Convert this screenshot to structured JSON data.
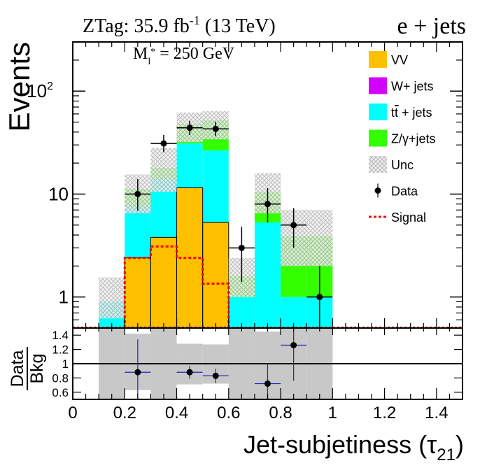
{
  "header": {
    "lumi_prefix": "ZTag: 35.9 fb",
    "lumi_exp": "-1",
    "lumi_suffix": " (13 TeV)",
    "channel": "e + jets"
  },
  "annotation": {
    "mass_m": "M",
    "mass_sub": "l",
    "mass_star": "*",
    "mass_value": " = 250 GeV"
  },
  "chart_data": [
    {
      "type": "bar",
      "stacked": true,
      "ylabel": "Events",
      "yscale": "log",
      "ylim": [
        0.5,
        300
      ],
      "xlim": [
        0,
        1.5
      ],
      "y_ticks": [
        {
          "value": 1,
          "label": "1"
        },
        {
          "value": 10,
          "label": "10"
        },
        {
          "value": 100,
          "label_base": "10",
          "label_exp": "2"
        }
      ],
      "bin_edges": [
        0,
        0.1,
        0.2,
        0.3,
        0.4,
        0.5,
        0.6,
        0.7,
        0.8,
        0.9,
        1.0,
        1.1,
        1.2,
        1.3,
        1.4,
        1.5
      ],
      "series": [
        {
          "name": "VV",
          "color": "#ffc000",
          "values": [
            0,
            0,
            2.4,
            3.8,
            11.5,
            5.3,
            0,
            0,
            0,
            0,
            0,
            0,
            0,
            0,
            0
          ]
        },
        {
          "name": "W+ jets",
          "color": "#d400ff",
          "values": [
            0,
            0,
            0,
            0,
            0,
            0,
            0,
            0,
            0,
            0,
            0,
            0,
            0,
            0,
            0
          ]
        },
        {
          "name": "tt̄ + jets",
          "label_main": "t",
          "label_bar": "t",
          "label_rest": " + jets",
          "color": "#00ffff",
          "values": [
            0,
            0.9,
            5.2,
            10.3,
            19.5,
            21.2,
            1.0,
            5.3,
            1.0,
            1.0,
            0,
            0,
            0,
            0,
            0
          ]
        },
        {
          "name": "Z/γ+jets",
          "color": "#33ff00",
          "values": [
            0,
            0,
            3.6,
            3.9,
            17.0,
            25.3,
            0.6,
            5.2,
            2.9,
            2.9,
            0,
            0,
            0,
            0,
            0
          ]
        }
      ],
      "uncertainty": {
        "name": "Unc",
        "lo": [
          0,
          0.62,
          6.5,
          10.5,
          32.0,
          34.0,
          1.0,
          6.5,
          2.0,
          2.0,
          0,
          0,
          0,
          0,
          0
        ],
        "hi": [
          0,
          1.55,
          15.5,
          28.0,
          62.0,
          64.0,
          2.4,
          16.0,
          7.0,
          7.0,
          0,
          0,
          0,
          0,
          0
        ]
      },
      "signal": {
        "name": "Signal",
        "color": "#ff0000",
        "values": [
          0,
          0,
          2.4,
          3.1,
          2.4,
          1.35,
          0,
          0,
          0,
          0,
          0,
          0,
          0,
          0,
          0
        ]
      },
      "data": {
        "name": "Data",
        "points": [
          {
            "x": 0.25,
            "y": 10,
            "ylo": 6.9,
            "yhi": 14.0
          },
          {
            "x": 0.35,
            "y": 31,
            "ylo": 25.5,
            "yhi": 37.5
          },
          {
            "x": 0.45,
            "y": 44,
            "ylo": 37.5,
            "yhi": 51.5
          },
          {
            "x": 0.55,
            "y": 43,
            "ylo": 36.5,
            "yhi": 50.5
          },
          {
            "x": 0.65,
            "y": 3,
            "ylo": 1.4,
            "yhi": 4.8
          },
          {
            "x": 0.75,
            "y": 8,
            "ylo": 5.3,
            "yhi": 11.4
          },
          {
            "x": 0.85,
            "y": 5,
            "ylo": 3.0,
            "yhi": 7.3
          },
          {
            "x": 0.95,
            "y": 1,
            "ylo": 0.35,
            "yhi": 2.0
          }
        ]
      },
      "legend": {
        "position": "top-right",
        "entries": [
          "VV",
          "W+ jets",
          "tt̄ + jets",
          "Z/γ+jets",
          "Unc",
          "Data",
          "Signal"
        ]
      }
    },
    {
      "type": "scatter",
      "ylabel_num": "Data",
      "ylabel_den": "Bkg",
      "xlabel_main": "Jet-subjetiness (τ",
      "xlabel_sub": "21",
      "xlabel_close": ")",
      "xlim": [
        0,
        1.5
      ],
      "ylim": [
        0.5,
        1.5
      ],
      "x_ticks": [
        {
          "value": 0,
          "label": "0"
        },
        {
          "value": 0.2,
          "label": "0.2"
        },
        {
          "value": 0.4,
          "label": "0.4"
        },
        {
          "value": 0.6,
          "label": "0.6"
        },
        {
          "value": 0.8,
          "label": "0.8"
        },
        {
          "value": 1.0,
          "label": "1"
        },
        {
          "value": 1.2,
          "label": "1.2"
        },
        {
          "value": 1.4,
          "label": "1.4"
        }
      ],
      "y_ticks": [
        {
          "value": 0.6,
          "label": "0.6"
        },
        {
          "value": 0.8,
          "label": "0.8"
        },
        {
          "value": 1.0,
          "label": "1"
        },
        {
          "value": 1.2,
          "label": "1.2"
        },
        {
          "value": 1.4,
          "label": "1.4"
        }
      ],
      "reference_line": 1.0,
      "unc_band": [
        {
          "x0": 0.1,
          "x1": 0.2,
          "lo": 0.5,
          "hi": 1.5
        },
        {
          "x0": 0.2,
          "x1": 0.3,
          "lo": 0.63,
          "hi": 1.42
        },
        {
          "x0": 0.3,
          "x1": 0.4,
          "lo": 0.5,
          "hi": 1.5
        },
        {
          "x0": 0.4,
          "x1": 0.5,
          "lo": 0.71,
          "hi": 1.28
        },
        {
          "x0": 0.5,
          "x1": 0.6,
          "lo": 0.72,
          "hi": 1.27
        },
        {
          "x0": 0.6,
          "x1": 0.7,
          "lo": 0.5,
          "hi": 1.5
        },
        {
          "x0": 0.7,
          "x1": 0.8,
          "lo": 0.5,
          "hi": 1.45
        },
        {
          "x0": 0.8,
          "x1": 0.9,
          "lo": 0.5,
          "hi": 1.5
        },
        {
          "x0": 0.9,
          "x1": 1.0,
          "lo": 0.5,
          "hi": 1.5
        }
      ],
      "points": [
        {
          "x": 0.25,
          "y": 0.88,
          "ylo": 0.5,
          "yhi": 1.34,
          "xerr": 0.05
        },
        {
          "x": 0.45,
          "y": 0.88,
          "ylo": 0.79,
          "yhi": 0.97,
          "xerr": 0.05
        },
        {
          "x": 0.55,
          "y": 0.83,
          "ylo": 0.73,
          "yhi": 0.93,
          "xerr": 0.05
        },
        {
          "x": 0.75,
          "y": 0.72,
          "ylo": 0.5,
          "yhi": 1.0,
          "xerr": 0.05
        },
        {
          "x": 0.85,
          "y": 1.26,
          "ylo": 0.76,
          "yhi": 1.5,
          "xerr": 0.05
        }
      ]
    }
  ]
}
